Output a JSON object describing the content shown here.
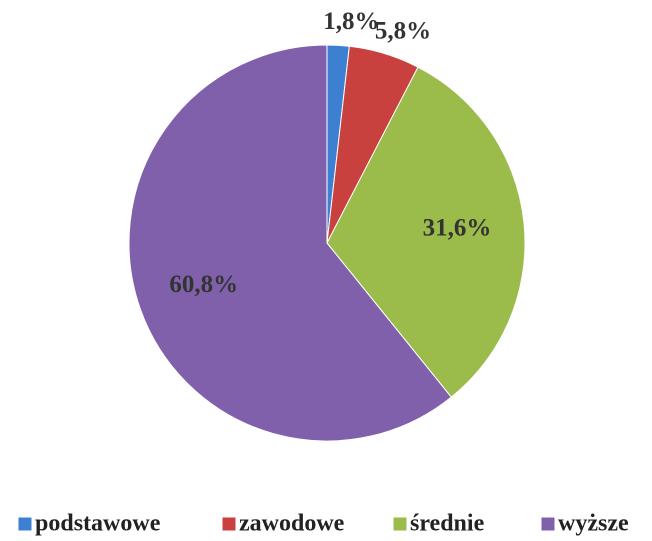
{
  "chart_data": {
    "type": "pie",
    "categories": [
      "podstawowe",
      "zawodowe",
      "średnie",
      "wyższe"
    ],
    "values": [
      1.8,
      5.8,
      31.6,
      60.8
    ],
    "value_labels": [
      "1,8%",
      "5,8%",
      "31,6%",
      "60,8%"
    ],
    "colors": [
      "#3d7fd0",
      "#c9413f",
      "#9bbb4a",
      "#8060ab"
    ],
    "legend": "bottom"
  }
}
